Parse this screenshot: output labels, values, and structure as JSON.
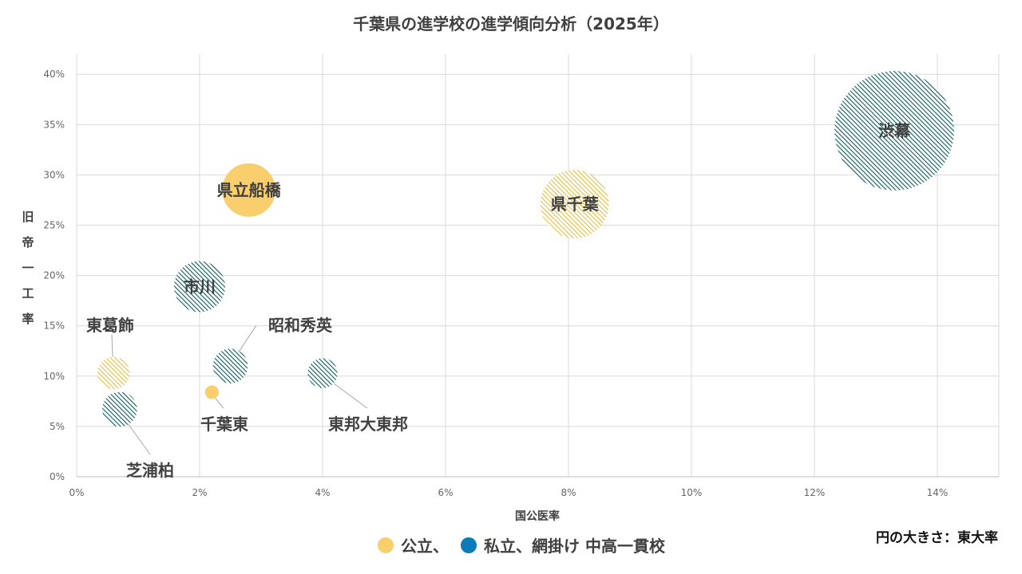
{
  "chart_data": {
    "type": "scatter",
    "title": "千葉県の進学校の進学傾向分析（2025年）",
    "xlabel": "国公医率",
    "ylabel": "旧帝一工率",
    "xlim": [
      0,
      15
    ],
    "ylim": [
      0,
      42
    ],
    "x_ticks": [
      "0%",
      "2%",
      "4%",
      "6%",
      "8%",
      "10%",
      "12%",
      "14%"
    ],
    "y_ticks": [
      "0%",
      "5%",
      "10%",
      "15%",
      "20%",
      "25%",
      "30%",
      "35%",
      "40%"
    ],
    "grid": true,
    "size_note": "円の大きさ：東大率",
    "legend": [
      {
        "label": "公立、",
        "color": "#F9CF6D",
        "type": "public"
      },
      {
        "label": "私立、網掛け 中高一貫校",
        "color": "#0B7AB8",
        "type": "private"
      }
    ],
    "points": [
      {
        "name": "渋幕",
        "x": 13.3,
        "y": 34.4,
        "size": 9.6,
        "type": "private",
        "hatched": true
      },
      {
        "name": "県千葉",
        "x": 8.1,
        "y": 27.1,
        "size": 5.5,
        "type": "public",
        "hatched": true
      },
      {
        "name": "県立船橋",
        "x": 2.8,
        "y": 28.5,
        "size": 4.3,
        "type": "public",
        "hatched": false
      },
      {
        "name": "市川",
        "x": 2.0,
        "y": 18.9,
        "size": 4.1,
        "type": "private",
        "hatched": true
      },
      {
        "name": "昭和秀英",
        "x": 2.5,
        "y": 11.0,
        "size": 2.8,
        "type": "private",
        "hatched": true
      },
      {
        "name": "東邦大東邦",
        "x": 4.0,
        "y": 10.3,
        "size": 2.4,
        "type": "private",
        "hatched": true
      },
      {
        "name": "東葛飾",
        "x": 0.6,
        "y": 10.3,
        "size": 2.6,
        "type": "public",
        "hatched": true
      },
      {
        "name": "千葉東",
        "x": 2.2,
        "y": 8.4,
        "size": 1.1,
        "type": "public",
        "hatched": false
      },
      {
        "name": "芝浦柏",
        "x": 0.7,
        "y": 6.7,
        "size": 2.8,
        "type": "private",
        "hatched": true
      }
    ]
  }
}
